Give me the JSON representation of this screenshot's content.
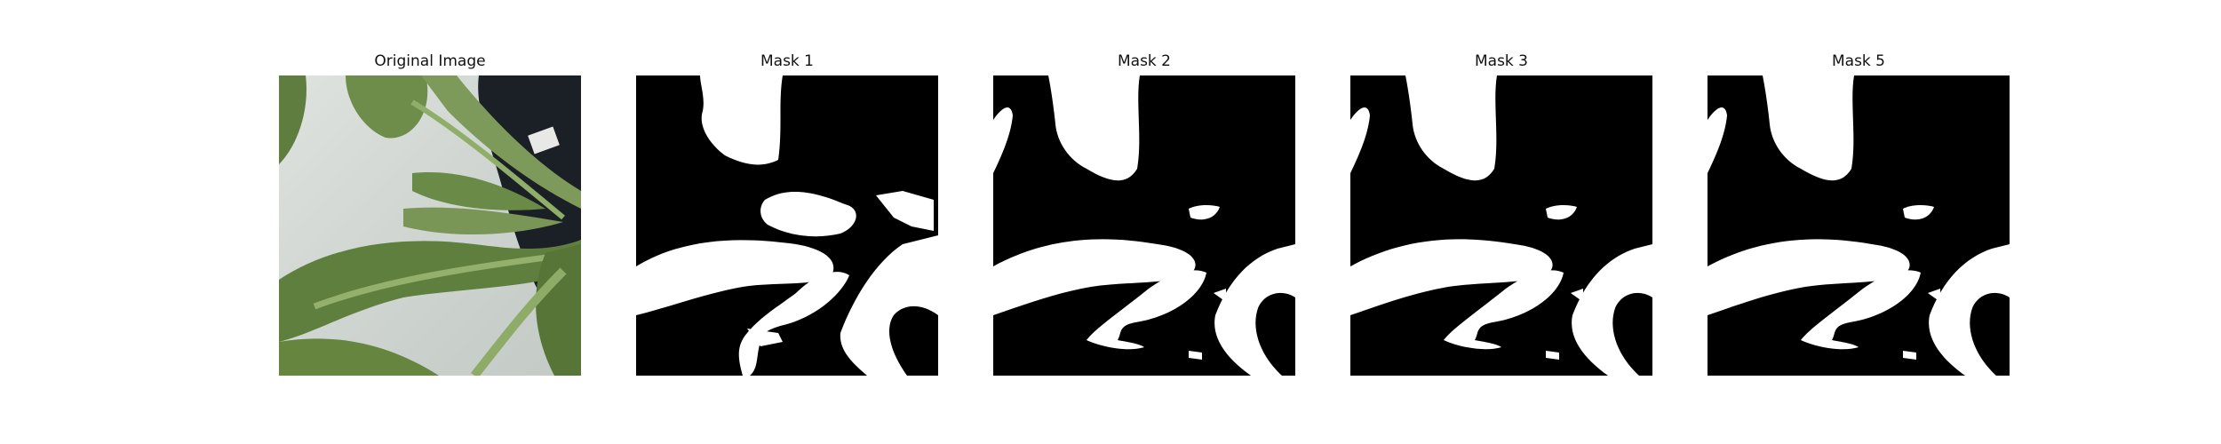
{
  "figure": {
    "panels": [
      {
        "title": "Original Image",
        "kind": "photo"
      },
      {
        "title": "Mask 1",
        "kind": "mask"
      },
      {
        "title": "Mask 2",
        "kind": "mask"
      },
      {
        "title": "Mask 3",
        "kind": "mask"
      },
      {
        "title": "Mask 5",
        "kind": "mask"
      }
    ]
  },
  "colors": {
    "mask_foreground": "#ffffff",
    "mask_background": "#000000",
    "leaf_green": "#6f8c4a",
    "leaf_dark": "#55713a",
    "wall_gray": "#d6dbd6",
    "pot_dark": "#1a1f24"
  }
}
